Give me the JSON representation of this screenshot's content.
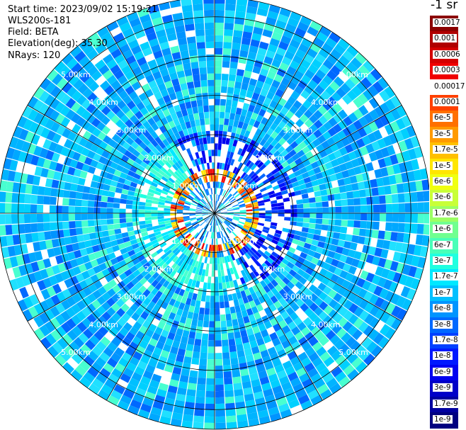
{
  "info": {
    "start_time": "Start time: 2023/09/02 15:19:21",
    "instrument": "WLS200s-181",
    "field": "Field: BETA",
    "elevation": "Elevation(deg): 35.30",
    "nrays": "NRays: 120"
  },
  "colorbar": {
    "title": "-1 sr",
    "labels": [
      "0.0017",
      "0.001",
      "0.0006",
      "0.0003",
      "0.00017",
      "0.0001",
      "6e-5",
      "3e-5",
      "1.7e-5",
      "1e-5",
      "6e-6",
      "3e-6",
      "1.7e-6",
      "1e-6",
      "6e-7",
      "3e-7",
      "1.7e-7",
      "1e-7",
      "6e-8",
      "3e-8",
      "1.7e-8",
      "1e-8",
      "6e-9",
      "3e-9",
      "1.7e-9",
      "1e-9"
    ],
    "colors": [
      "#8b0000",
      "#b00000",
      "#d40000",
      "#f00000",
      "#ffffff",
      "#ff4000",
      "#ff7000",
      "#ff9a00",
      "#ffc000",
      "#ffe600",
      "#f0ff10",
      "#c8ff38",
      "#9cff64",
      "#70ff90",
      "#48ffb8",
      "#20ffe0",
      "#00e8ff",
      "#00c0ff",
      "#0094ff",
      "#0068ff",
      "#0040ff",
      "#0018ff",
      "#0000f0",
      "#0000c8",
      "#0000a0",
      "#000080"
    ]
  },
  "chart_data": {
    "type": "heatmap",
    "projection": "polar PPI scan",
    "field": "BETA",
    "units": "-1 sr",
    "scale": "log",
    "value_range": [
      1e-09,
      0.0017
    ],
    "nrays": 120,
    "ring_labels": [
      "1.00km",
      "2.00km",
      "3.00km",
      "4.00km",
      "5.00km"
    ],
    "range_km": [
      0,
      5.5
    ],
    "features": [
      {
        "description": "ring of high backscatter",
        "range_km": 1.0,
        "level": "1e-5 to 3e-5"
      },
      {
        "description": "background",
        "level": "1.7e-8 to 1e-7"
      },
      {
        "description": "low-signal region",
        "range_km": [
          1.0,
          2.0
        ],
        "level": "1e-9 to 1e-8"
      }
    ]
  }
}
